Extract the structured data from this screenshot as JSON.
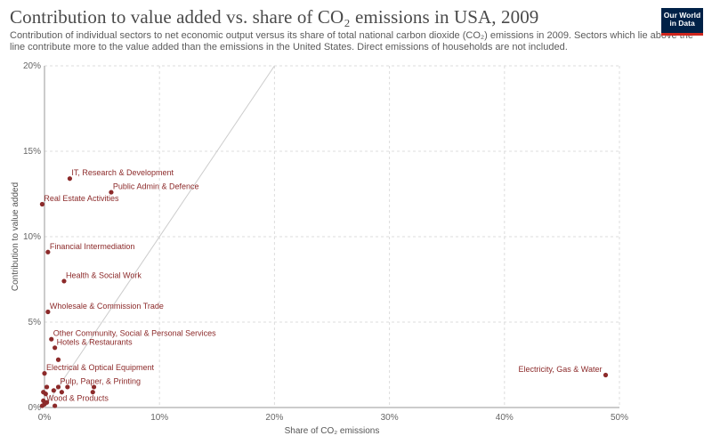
{
  "header": {
    "title": "Contribution to value added vs. share of CO₂ emissions in USA, 2009",
    "subtitle": "Contribution of individual sectors to net economic output versus its share of total national carbon dioxide (CO₂) emissions in 2009. Sectors which lie above the line contribute more to the value added than the emissions in the United States. Direct emissions of households are not included.",
    "logo_line1": "Our World",
    "logo_line2": "in Data"
  },
  "colors": {
    "point": "#8c2a2a",
    "grid": "#dddddd",
    "diagonal": "#cccccc",
    "logo_bg": "#002147",
    "logo_accent": "#ce261e"
  },
  "chart_data": {
    "type": "scatter",
    "title": "Contribution to value added vs. share of CO₂ emissions in USA, 2009",
    "xlabel": "Share of CO₂ emissions",
    "ylabel": "Contribution to value added",
    "xlim": [
      0,
      50
    ],
    "ylim": [
      0,
      20
    ],
    "x_ticks": [
      "0%",
      "10%",
      "20%",
      "30%",
      "40%",
      "50%"
    ],
    "y_ticks": [
      "0%",
      "5%",
      "10%",
      "15%",
      "20%"
    ],
    "grid": true,
    "reference_line": "y = x",
    "points": [
      {
        "label": "IT, Research & Development",
        "x": 2.2,
        "y": 13.4
      },
      {
        "label": "Public Admin & Defence",
        "x": 5.8,
        "y": 12.6
      },
      {
        "label": "Real Estate Activities",
        "x": -0.2,
        "y": 11.9
      },
      {
        "label": "Financial Intermediation",
        "x": 0.3,
        "y": 9.1
      },
      {
        "label": "Health & Social Work",
        "x": 1.7,
        "y": 7.4
      },
      {
        "label": "Wholesale & Commission Trade",
        "x": 0.3,
        "y": 5.6
      },
      {
        "label": "Other Community, Social & Personal Services",
        "x": 0.6,
        "y": 4.0
      },
      {
        "label": "Hotels & Restaurants",
        "x": 0.9,
        "y": 3.5
      },
      {
        "label": "Electrical & Optical Equipment",
        "x": 0.0,
        "y": 2.0
      },
      {
        "label": "Electricity, Gas & Water",
        "x": 48.8,
        "y": 1.9
      },
      {
        "label": "Pulp, Paper, & Printing",
        "x": 1.2,
        "y": 1.2
      },
      {
        "label": "Wood & Products",
        "x": 0.0,
        "y": 0.2
      },
      {
        "label": "",
        "x": 1.2,
        "y": 2.8
      },
      {
        "label": "",
        "x": 0.2,
        "y": 1.2
      },
      {
        "label": "",
        "x": -0.1,
        "y": 0.9
      },
      {
        "label": "",
        "x": 0.1,
        "y": 0.8
      },
      {
        "label": "",
        "x": 0.8,
        "y": 1.0
      },
      {
        "label": "",
        "x": 2.0,
        "y": 1.2
      },
      {
        "label": "",
        "x": 4.3,
        "y": 1.2
      },
      {
        "label": "",
        "x": 4.2,
        "y": 0.9
      },
      {
        "label": "",
        "x": 1.5,
        "y": 0.9
      },
      {
        "label": "",
        "x": -0.1,
        "y": 0.4
      },
      {
        "label": "",
        "x": 0.2,
        "y": 0.3
      },
      {
        "label": "",
        "x": 0.9,
        "y": 0.1
      },
      {
        "label": "",
        "x": -0.2,
        "y": 0.1
      }
    ]
  }
}
